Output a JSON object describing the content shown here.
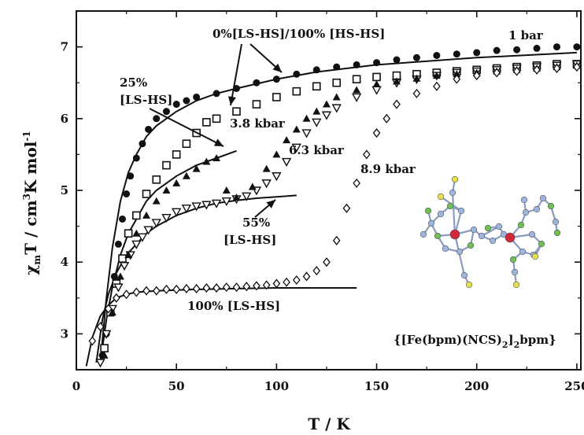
{
  "chart_data": {
    "type": "scatter",
    "xlabel": "T / K",
    "ylabel": "χmT / cm3K mol-1",
    "xlim": [
      0,
      252
    ],
    "ylim": [
      2.5,
      7.5
    ],
    "xticks": [
      0,
      50,
      100,
      150,
      200,
      250
    ],
    "yticks": [
      3,
      4,
      5,
      6,
      7
    ],
    "series": [
      {
        "name": "1 bar",
        "marker": "filled-circle",
        "x": [
          13,
          15,
          17,
          19,
          21,
          23,
          25,
          27,
          30,
          33,
          36,
          40,
          45,
          50,
          55,
          60,
          70,
          80,
          90,
          100,
          110,
          120,
          130,
          140,
          150,
          160,
          170,
          180,
          190,
          200,
          210,
          220,
          230,
          240,
          250
        ],
        "y": [
          2.7,
          3.0,
          3.35,
          3.8,
          4.25,
          4.6,
          4.95,
          5.2,
          5.45,
          5.65,
          5.85,
          6.0,
          6.1,
          6.2,
          6.25,
          6.3,
          6.35,
          6.42,
          6.5,
          6.55,
          6.62,
          6.68,
          6.72,
          6.75,
          6.78,
          6.82,
          6.85,
          6.88,
          6.9,
          6.92,
          6.95,
          6.96,
          6.98,
          7.0,
          7.0
        ]
      },
      {
        "name": "3.8 kbar",
        "marker": "open-square",
        "x": [
          14,
          17,
          20,
          23,
          26,
          30,
          35,
          40,
          45,
          50,
          55,
          60,
          65,
          70,
          80,
          90,
          100,
          110,
          120,
          130,
          140,
          150,
          160,
          170,
          180,
          190,
          200,
          210,
          220,
          230,
          240,
          250
        ],
        "y": [
          2.8,
          3.3,
          3.7,
          4.05,
          4.4,
          4.65,
          4.95,
          5.15,
          5.35,
          5.5,
          5.65,
          5.8,
          5.95,
          6.0,
          6.1,
          6.2,
          6.3,
          6.38,
          6.45,
          6.5,
          6.55,
          6.58,
          6.6,
          6.62,
          6.64,
          6.66,
          6.68,
          6.7,
          6.72,
          6.74,
          6.76,
          6.76
        ]
      },
      {
        "name": "6.3 kbar",
        "marker": "open-triangle-down",
        "x": [
          12,
          15,
          18,
          21,
          24,
          27,
          30,
          33,
          36,
          40,
          45,
          50,
          55,
          60,
          65,
          70,
          75,
          80,
          85,
          90,
          95,
          100,
          105,
          110,
          115,
          120,
          125,
          130,
          140,
          150,
          160,
          170,
          180,
          190,
          200,
          210,
          220,
          230,
          240,
          250
        ],
        "y": [
          2.6,
          3.0,
          3.35,
          3.65,
          3.95,
          4.1,
          4.25,
          4.35,
          4.45,
          4.55,
          4.62,
          4.7,
          4.75,
          4.78,
          4.8,
          4.82,
          4.85,
          4.88,
          4.92,
          5.0,
          5.1,
          5.2,
          5.4,
          5.6,
          5.8,
          5.95,
          6.05,
          6.15,
          6.3,
          6.4,
          6.5,
          6.55,
          6.6,
          6.64,
          6.66,
          6.68,
          6.7,
          6.72,
          6.74,
          6.76
        ]
      },
      {
        "name": "filled-triangle",
        "marker": "filled-triangle",
        "x": [
          14,
          18,
          22,
          26,
          30,
          35,
          40,
          45,
          50,
          55,
          60,
          65,
          70,
          75,
          80,
          88,
          95,
          100,
          105,
          110,
          115,
          120,
          125,
          130,
          140,
          150,
          160,
          170,
          180,
          190,
          200,
          210,
          220,
          230,
          240,
          250
        ],
        "y": [
          2.7,
          3.3,
          3.8,
          4.1,
          4.4,
          4.65,
          4.85,
          5.0,
          5.1,
          5.2,
          5.3,
          5.4,
          5.45,
          5.0,
          4.9,
          5.05,
          5.3,
          5.5,
          5.7,
          5.85,
          6.0,
          6.1,
          6.2,
          6.3,
          6.4,
          6.48,
          6.52,
          6.56,
          6.6,
          6.62,
          6.64,
          6.66,
          6.68,
          6.7,
          6.72,
          6.74
        ]
      },
      {
        "name": "8.9 kbar",
        "marker": "open-diamond",
        "x": [
          8,
          12,
          16,
          20,
          25,
          30,
          35,
          40,
          45,
          50,
          55,
          60,
          65,
          70,
          75,
          80,
          85,
          90,
          95,
          100,
          105,
          110,
          115,
          120,
          125,
          130,
          135,
          140,
          145,
          150,
          155,
          160,
          170,
          180,
          190,
          200,
          210,
          220,
          230,
          240,
          250
        ],
        "y": [
          2.9,
          3.1,
          3.35,
          3.5,
          3.55,
          3.58,
          3.6,
          3.6,
          3.62,
          3.62,
          3.63,
          3.63,
          3.64,
          3.64,
          3.65,
          3.65,
          3.66,
          3.67,
          3.68,
          3.7,
          3.72,
          3.75,
          3.8,
          3.88,
          4.0,
          4.3,
          4.75,
          5.1,
          5.5,
          5.8,
          6.0,
          6.2,
          6.35,
          6.45,
          6.55,
          6.6,
          6.64,
          6.66,
          6.68,
          6.7,
          6.72
        ]
      }
    ],
    "curves": [
      {
        "name": "0%[LS-HS]/100% [HS-HS]",
        "x": [
          12,
          15,
          18,
          22,
          26,
          30,
          35,
          40,
          50,
          60,
          70,
          80,
          100,
          120,
          150,
          200,
          250
        ],
        "y": [
          2.6,
          3.5,
          4.2,
          4.85,
          5.25,
          5.5,
          5.75,
          5.9,
          6.1,
          6.25,
          6.35,
          6.42,
          6.55,
          6.65,
          6.75,
          6.85,
          6.92
        ]
      },
      {
        "name": "25% [LS-HS]",
        "x": [
          12,
          15,
          18,
          22,
          26,
          30,
          35,
          40,
          50,
          60,
          70,
          80
        ],
        "y": [
          2.6,
          3.2,
          3.65,
          4.1,
          4.4,
          4.6,
          4.85,
          5.0,
          5.2,
          5.35,
          5.45,
          5.55
        ]
      },
      {
        "name": "55% [LS-HS]",
        "x": [
          10,
          13,
          16,
          20,
          25,
          30,
          35,
          40,
          50,
          60,
          70,
          80,
          90,
          100,
          110
        ],
        "y": [
          2.6,
          3.2,
          3.55,
          3.85,
          4.1,
          4.25,
          4.4,
          4.5,
          4.65,
          4.75,
          4.82,
          4.86,
          4.89,
          4.91,
          4.93
        ]
      },
      {
        "name": "100% [LS-HS]",
        "x": [
          5,
          8,
          12,
          16,
          20,
          25,
          30,
          40,
          50,
          60,
          80,
          100,
          120,
          140
        ],
        "y": [
          2.55,
          2.95,
          3.25,
          3.4,
          3.5,
          3.55,
          3.58,
          3.6,
          3.61,
          3.62,
          3.63,
          3.64,
          3.64,
          3.64
        ]
      }
    ],
    "annotations": {
      "top_label": "0%[LS-HS]/100% [HS-HS]",
      "label_1bar": "1 bar",
      "label_25_line1": "25%",
      "label_25_line2": "[LS-HS]",
      "label_38": "3.8 kbar",
      "label_63": "6.3 kbar",
      "label_89": "8.9 kbar",
      "label_55_line1": "55%",
      "label_55_line2": "[LS-HS]",
      "label_100": "100% [LS-HS]",
      "formula": "{[Fe(bpm)(NCS)2]2bpm}"
    },
    "grid": false
  }
}
